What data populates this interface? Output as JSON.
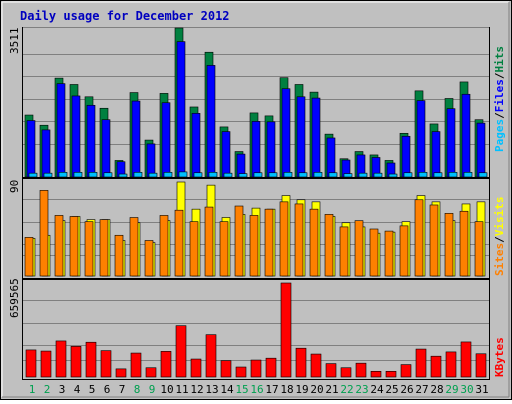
{
  "title": "Daily usage for December 2012",
  "colors": {
    "frame_bg": "#c0c0c0",
    "title": "#0000c0",
    "hits": "#008040",
    "files": "#0000ff",
    "pages": "#00c0ff",
    "visits": "#ffff00",
    "sites": "#ff8000",
    "kbytes": "#ff0000",
    "weekday_label": "#000000",
    "weekend_label": "#00a050",
    "grid": "#808080"
  },
  "legend": {
    "top": [
      {
        "text": "Pages",
        "color": "#00c0ff"
      },
      {
        "text": "/",
        "color": "#000000"
      },
      {
        "text": "Files",
        "color": "#0000ff"
      },
      {
        "text": "/",
        "color": "#000000"
      },
      {
        "text": "Hits",
        "color": "#008040"
      }
    ],
    "middle": [
      {
        "text": "Sites",
        "color": "#ff8000"
      },
      {
        "text": "/",
        "color": "#000000"
      },
      {
        "text": "Visits",
        "color": "#ffff00"
      }
    ],
    "bottom": [
      {
        "text": "KBytes",
        "color": "#ff0000"
      }
    ]
  },
  "chart_data": {
    "type": "bar",
    "categories": [
      "1",
      "2",
      "3",
      "4",
      "5",
      "6",
      "7",
      "8",
      "9",
      "10",
      "11",
      "12",
      "13",
      "14",
      "15",
      "16",
      "17",
      "18",
      "19",
      "20",
      "21",
      "22",
      "23",
      "24",
      "25",
      "26",
      "27",
      "28",
      "29",
      "30",
      "31"
    ],
    "weekend_days": [
      "1",
      "2",
      "8",
      "9",
      "15",
      "16",
      "22",
      "23",
      "29",
      "30"
    ],
    "panels": [
      {
        "name": "hits-files-pages",
        "ymax_label": "3511",
        "ylim": [
          0,
          3511
        ],
        "series": [
          {
            "name": "Hits",
            "values": [
              1460,
              1220,
              2330,
              2180,
              1890,
              1620,
              390,
              1990,
              870,
              1970,
              3511,
              1650,
              2940,
              1180,
              600,
              1510,
              1440,
              2340,
              2180,
              2000,
              1010,
              430,
              600,
              520,
              390,
              1030,
              2030,
              1250,
              1850,
              2240,
              1350
            ]
          },
          {
            "name": "Files",
            "values": [
              1330,
              1110,
              2200,
              1910,
              1690,
              1350,
              360,
              1790,
              780,
              1750,
              3190,
              1500,
              2630,
              1070,
              540,
              1310,
              1300,
              2080,
              1890,
              1860,
              920,
              400,
              520,
              460,
              330,
              960,
              1800,
              1070,
              1610,
              1950,
              1270
            ]
          },
          {
            "name": "Pages",
            "values": [
              90,
              90,
              110,
              110,
              110,
              100,
              70,
              110,
              90,
              110,
              120,
              100,
              110,
              90,
              80,
              100,
              100,
              110,
              100,
              110,
              100,
              80,
              90,
              90,
              70,
              100,
              110,
              100,
              110,
              110,
              100
            ]
          }
        ]
      },
      {
        "name": "visits-sites",
        "ymax_label": "90",
        "ylim": [
          0,
          90
        ],
        "series": [
          {
            "name": "Visits",
            "values": [
              36,
              39,
              53,
              57,
              54,
              54,
              34,
              51,
              32,
              53,
              90,
              64,
              87,
              56,
              59,
              65,
              64,
              77,
              73,
              71,
              57,
              51,
              47,
              41,
              42,
              52,
              77,
              71,
              53,
              69,
              71
            ]
          },
          {
            "name": "Sites",
            "values": [
              37,
              82,
              58,
              57,
              52,
              54,
              39,
              56,
              34,
              58,
              63,
              52,
              66,
              52,
              67,
              58,
              64,
              71,
              69,
              64,
              59,
              47,
              53,
              45,
              43,
              48,
              73,
              68,
              60,
              62,
              52
            ]
          }
        ]
      },
      {
        "name": "kbytes",
        "ymax_label": "659565",
        "ylim": [
          0,
          659565
        ],
        "series": [
          {
            "name": "KBytes",
            "values": [
              190000,
              182000,
              253000,
              215000,
              244000,
              185000,
              57000,
              168000,
              65000,
              180000,
              360000,
              126000,
              297000,
              115000,
              70000,
              119000,
              132000,
              659565,
              202000,
              161000,
              94000,
              65000,
              97000,
              40000,
              40000,
              87000,
              196000,
              146000,
              176000,
              246000,
              163000
            ]
          }
        ]
      }
    ]
  }
}
